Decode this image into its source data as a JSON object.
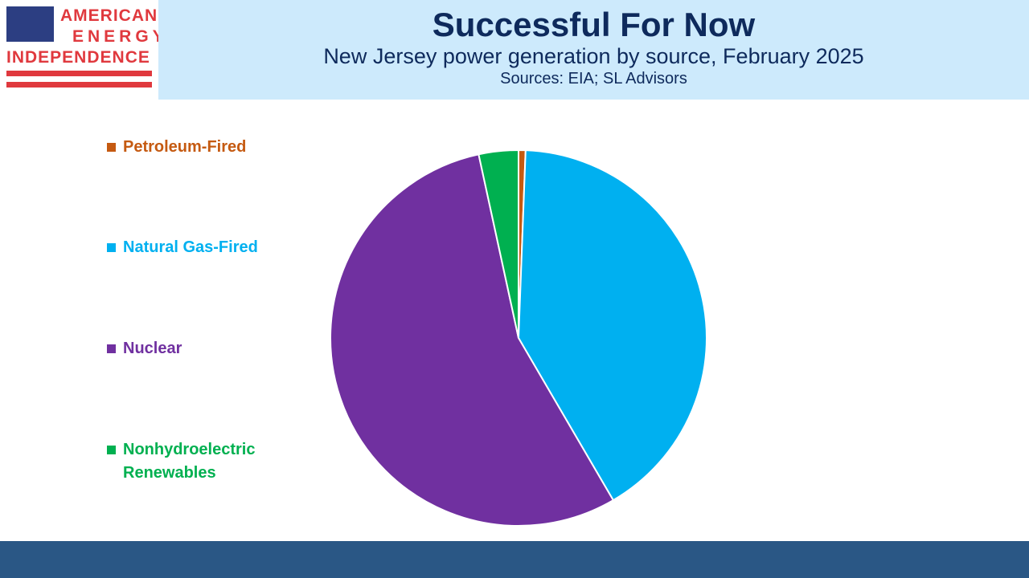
{
  "logo": {
    "lines": [
      "AMERICAN",
      "ENERGY",
      "INDEPENDENCE"
    ]
  },
  "chart_data": {
    "type": "pie",
    "title": "Successful For Now",
    "subtitle": "New Jersey power generation by source, February 2025",
    "source": "Sources: EIA; SL Advisors",
    "categories": [
      "Petroleum-Fired",
      "Natural Gas-Fired",
      "Nuclear",
      "Nonhydroelectric Renewables"
    ],
    "values": [
      0.6,
      41,
      55,
      3.4
    ],
    "colors": [
      "#c55a11",
      "#00b0f0",
      "#7030a0",
      "#00b050"
    ],
    "legend": "left"
  }
}
